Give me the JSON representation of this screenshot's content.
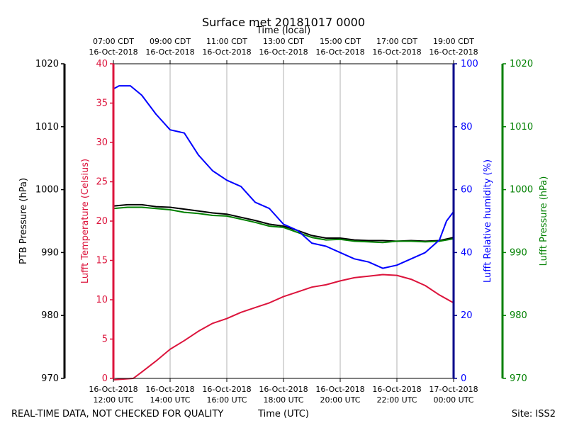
{
  "chart_data": {
    "type": "line",
    "title": "Surface met 20181017 0000",
    "top_axis_label": "Time (local)",
    "xlabel": "Time (UTC)",
    "footer_left": "REAL-TIME DATA, NOT CHECKED FOR QUALITY",
    "footer_right": "Site: ISS2",
    "x_range_hours_utc": [
      12,
      24
    ],
    "x_ticks": [
      {
        "hour": 12,
        "bottom": [
          "16-Oct-2018",
          "12:00 UTC"
        ],
        "top": [
          "07:00 CDT",
          "16-Oct-2018"
        ]
      },
      {
        "hour": 14,
        "bottom": [
          "16-Oct-2018",
          "14:00 UTC"
        ],
        "top": [
          "09:00 CDT",
          "16-Oct-2018"
        ]
      },
      {
        "hour": 16,
        "bottom": [
          "16-Oct-2018",
          "16:00 UTC"
        ],
        "top": [
          "11:00 CDT",
          "16-Oct-2018"
        ]
      },
      {
        "hour": 18,
        "bottom": [
          "16-Oct-2018",
          "18:00 UTC"
        ],
        "top": [
          "13:00 CDT",
          "16-Oct-2018"
        ]
      },
      {
        "hour": 20,
        "bottom": [
          "16-Oct-2018",
          "20:00 UTC"
        ],
        "top": [
          "15:00 CDT",
          "16-Oct-2018"
        ]
      },
      {
        "hour": 22,
        "bottom": [
          "16-Oct-2018",
          "22:00 UTC"
        ],
        "top": [
          "17:00 CDT",
          "16-Oct-2018"
        ]
      },
      {
        "hour": 24,
        "bottom": [
          "17-Oct-2018",
          "00:00 UTC"
        ],
        "top": [
          "19:00 CDT",
          "16-Oct-2018"
        ]
      }
    ],
    "axes": {
      "ptb_pressure": {
        "label": "PTB Pressure (hPa)",
        "range": [
          970,
          1020
        ],
        "ticks": [
          "970",
          "980",
          "990",
          "1000",
          "1010",
          "1020"
        ],
        "color": "#000000"
      },
      "temperature": {
        "label": "Lufft Temperature (Celsius)",
        "range": [
          0,
          40
        ],
        "ticks": [
          "0",
          "5",
          "10",
          "15",
          "20",
          "25",
          "30",
          "35",
          "40"
        ],
        "color": "#dc143c"
      },
      "humidity": {
        "label": "Lufft Relative humidity (%)",
        "range": [
          0,
          100
        ],
        "ticks": [
          "0",
          "20",
          "40",
          "60",
          "80",
          "100"
        ],
        "color": "#0000ff"
      },
      "lufft_pressure": {
        "label": "Lufft Pressure (hPa)",
        "range": [
          970,
          1020
        ],
        "ticks": [
          "970",
          "980",
          "990",
          "1000",
          "1010",
          "1020"
        ],
        "color": "#008000"
      }
    },
    "series": [
      {
        "name": "PTB Pressure",
        "axis": "ptb_pressure",
        "color": "#000000",
        "x": [
          12.0,
          12.5,
          13.0,
          13.5,
          14.0,
          14.5,
          15.0,
          15.5,
          16.0,
          16.5,
          17.0,
          17.5,
          18.0,
          18.5,
          19.0,
          19.5,
          20.0,
          20.5,
          21.0,
          21.5,
          22.0,
          22.5,
          23.0,
          23.5,
          24.0
        ],
        "y": [
          997.4,
          997.6,
          997.6,
          997.3,
          997.2,
          996.9,
          996.6,
          996.3,
          996.1,
          995.6,
          995.1,
          994.5,
          994.2,
          993.5,
          992.7,
          992.3,
          992.3,
          992.0,
          991.9,
          991.9,
          991.8,
          991.9,
          991.8,
          991.9,
          992.4
        ]
      },
      {
        "name": "Lufft Pressure",
        "axis": "lufft_pressure",
        "color": "#008000",
        "x": [
          12.0,
          12.5,
          13.0,
          13.5,
          14.0,
          14.5,
          15.0,
          15.5,
          16.0,
          16.5,
          17.0,
          17.5,
          18.0,
          18.5,
          19.0,
          19.5,
          20.0,
          20.5,
          21.0,
          21.5,
          22.0,
          22.5,
          23.0,
          23.5,
          24.0
        ],
        "y": [
          997.0,
          997.2,
          997.2,
          997.0,
          996.8,
          996.4,
          996.2,
          995.9,
          995.8,
          995.3,
          994.8,
          994.2,
          994.0,
          993.2,
          992.4,
          992.0,
          992.1,
          991.8,
          991.7,
          991.6,
          991.8,
          991.8,
          991.7,
          991.8,
          992.2
        ]
      },
      {
        "name": "Lufft Temperature",
        "axis": "temperature",
        "color": "#dc143c",
        "x": [
          12.0,
          12.7,
          13.0,
          13.5,
          14.0,
          14.5,
          15.0,
          15.5,
          16.0,
          16.5,
          17.0,
          17.5,
          18.0,
          18.5,
          19.0,
          19.5,
          20.0,
          20.5,
          21.0,
          21.5,
          22.0,
          22.5,
          23.0,
          23.5,
          24.0
        ],
        "y": [
          -0.5,
          0.0,
          0.8,
          2.2,
          3.7,
          4.8,
          6.0,
          7.0,
          7.6,
          8.4,
          9.0,
          9.6,
          10.4,
          11.0,
          11.6,
          11.9,
          12.4,
          12.8,
          13.0,
          13.2,
          13.1,
          12.6,
          11.8,
          10.6,
          9.6
        ]
      },
      {
        "name": "Lufft Relative humidity",
        "axis": "humidity",
        "color": "#0000ff",
        "x": [
          12.0,
          12.2,
          12.6,
          13.0,
          13.5,
          14.0,
          14.5,
          15.0,
          15.5,
          16.0,
          16.5,
          17.0,
          17.5,
          18.0,
          18.5,
          19.0,
          19.5,
          20.0,
          20.5,
          21.0,
          21.5,
          22.0,
          22.5,
          23.0,
          23.5,
          23.75,
          24.0
        ],
        "y": [
          92,
          93,
          93,
          90,
          84,
          79,
          78,
          71,
          66,
          63,
          61,
          56,
          54,
          49,
          47,
          43,
          42,
          40,
          38,
          37,
          35,
          36,
          38,
          40,
          44,
          50,
          53
        ]
      }
    ]
  }
}
